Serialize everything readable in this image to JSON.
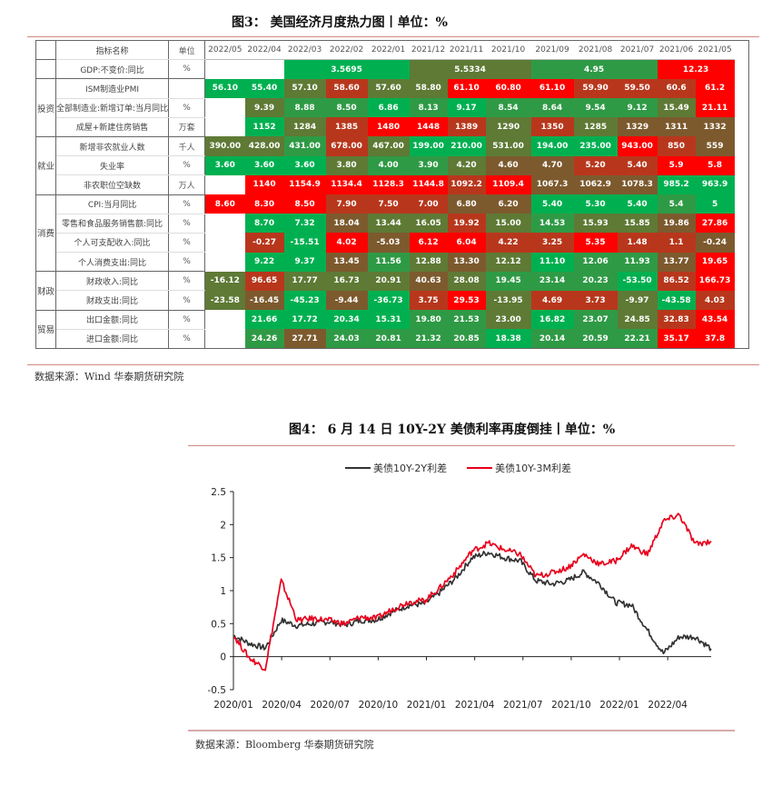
{
  "figure3": {
    "title": "图3：   美国经济月度热力图丨单位：%",
    "header": {
      "name": "指标名称",
      "unit": "单位",
      "months": [
        "2022/05",
        "2022/04",
        "2022/03",
        "2022/02",
        "2022/01",
        "2021/12",
        "2021/11",
        "2021/10",
        "2021/09",
        "2021/08",
        "2021/07",
        "2021/06",
        "2021/05"
      ]
    },
    "gdp": {
      "name": "GDP:不变价:同比",
      "unit": "%",
      "q2022q1": "3.5695",
      "q2021q4": "5.5334",
      "q2021q3": "4.95",
      "q2021q2": "12.23"
    },
    "groups": [
      {
        "label": "投资",
        "rows": [
          {
            "name": "ISM制造业PMI",
            "unit": "",
            "values": [
              "56.10",
              "55.40",
              "57.10",
              "58.60",
              "57.60",
              "58.80",
              "61.10",
              "60.80",
              "61.10",
              "59.90",
              "59.50",
              "60.6",
              "61.2"
            ]
          },
          {
            "name": "全部制造业:新增订单:当月同比",
            "unit": "%",
            "values": [
              "",
              "9.39",
              "8.88",
              "8.50",
              "6.86",
              "8.13",
              "9.17",
              "8.54",
              "8.64",
              "9.54",
              "9.12",
              "15.49",
              "21.11"
            ]
          },
          {
            "name": "成屋+新建住房销售",
            "unit": "万套",
            "values": [
              "",
              "1152",
              "1284",
              "1385",
              "1480",
              "1448",
              "1389",
              "1290",
              "1350",
              "1285",
              "1329",
              "1311",
              "1332"
            ]
          }
        ]
      },
      {
        "label": "就业",
        "rows": [
          {
            "name": "新增非农就业人数",
            "unit": "千人",
            "values": [
              "390.00",
              "428.00",
              "431.00",
              "678.00",
              "467.00",
              "199.00",
              "210.00",
              "531.00",
              "194.00",
              "235.00",
              "943.00",
              "850",
              "559"
            ]
          },
          {
            "name": "失业率",
            "unit": "%",
            "values": [
              "3.60",
              "3.60",
              "3.60",
              "3.80",
              "4.00",
              "3.90",
              "4.20",
              "4.60",
              "4.70",
              "5.20",
              "5.40",
              "5.9",
              "5.8"
            ]
          },
          {
            "name": "非农职位空缺数",
            "unit": "万人",
            "values": [
              "",
              "1140",
              "1154.9",
              "1134.4",
              "1128.3",
              "1144.8",
              "1092.2",
              "1109.4",
              "1067.3",
              "1062.9",
              "1078.3",
              "985.2",
              "963.9"
            ]
          }
        ]
      },
      {
        "label": "消费",
        "rows": [
          {
            "name": "CPI:当月同比",
            "unit": "%",
            "values": [
              "8.60",
              "8.30",
              "8.50",
              "7.90",
              "7.50",
              "7.00",
              "6.80",
              "6.20",
              "5.40",
              "5.30",
              "5.40",
              "5.4",
              "5"
            ]
          },
          {
            "name": "零售和食品服务销售额:同比",
            "unit": "%",
            "values": [
              "",
              "8.70",
              "7.32",
              "18.04",
              "13.44",
              "16.05",
              "19.92",
              "15.00",
              "14.53",
              "15.93",
              "15.85",
              "19.86",
              "27.86"
            ]
          },
          {
            "name": "个人可支配收入:同比",
            "unit": "%",
            "values": [
              "",
              "-0.27",
              "-15.51",
              "4.02",
              "-5.03",
              "6.12",
              "6.04",
              "4.22",
              "3.25",
              "5.35",
              "1.48",
              "1.1",
              "-0.24"
            ]
          },
          {
            "name": "个人消费支出:同比",
            "unit": "%",
            "values": [
              "",
              "9.22",
              "9.37",
              "13.45",
              "11.56",
              "12.88",
              "13.30",
              "12.12",
              "11.10",
              "12.06",
              "11.93",
              "13.77",
              "19.65"
            ]
          }
        ]
      },
      {
        "label": "财政",
        "rows": [
          {
            "name": "财政收入:同比",
            "unit": "%",
            "values": [
              "-16.12",
              "96.65",
              "17.77",
              "16.73",
              "20.91",
              "40.63",
              "28.08",
              "19.45",
              "23.14",
              "20.23",
              "-53.50",
              "86.52",
              "166.73"
            ]
          },
          {
            "name": "财政支出:同比",
            "unit": "%",
            "values": [
              "-23.58",
              "-16.45",
              "-45.23",
              "-9.44",
              "-36.73",
              "3.75",
              "29.53",
              "-13.95",
              "4.69",
              "3.73",
              "-9.97",
              "-43.58",
              "4.03"
            ]
          }
        ]
      },
      {
        "label": "贸易",
        "rows": [
          {
            "name": "出口金额:同比",
            "unit": "%",
            "values": [
              "",
              "21.66",
              "17.72",
              "20.34",
              "15.31",
              "19.80",
              "21.53",
              "23.00",
              "16.82",
              "23.07",
              "24.85",
              "32.83",
              "43.54"
            ]
          },
          {
            "name": "进口金额:同比",
            "unit": "%",
            "values": [
              "",
              "24.26",
              "27.71",
              "24.03",
              "20.81",
              "21.32",
              "20.85",
              "18.38",
              "20.14",
              "20.59",
              "22.21",
              "35.17",
              "37.8"
            ]
          }
        ]
      }
    ],
    "source": "数据来源：Wind  华泰期货研究院"
  },
  "colors": {
    "G": "#00b050",
    "g": "#2f9a45",
    "o": "#5e7a35",
    "b": "#7d5a2e",
    "r": "#b8371c",
    "R": "#ff0000",
    "W": "#ffffff",
    "rule": "#d08a80",
    "series_10y2y": "#333333",
    "series_10y3m": "#e8001c"
  },
  "cell_colors": [
    [
      "G",
      "G",
      "o",
      "r",
      "o",
      "o",
      "R",
      "R",
      "R",
      "r",
      "r",
      "r",
      "R"
    ],
    [
      "W",
      "o",
      "g",
      "g",
      "G",
      "g",
      "G",
      "g",
      "g",
      "g",
      "g",
      "o",
      "R"
    ],
    [
      "W",
      "G",
      "o",
      "r",
      "R",
      "R",
      "r",
      "o",
      "r",
      "o",
      "b",
      "b",
      "b"
    ],
    [
      "o",
      "o",
      "g",
      "r",
      "o",
      "G",
      "G",
      "o",
      "G",
      "G",
      "R",
      "r",
      "b"
    ],
    [
      "G",
      "G",
      "G",
      "o",
      "g",
      "g",
      "o",
      "b",
      "b",
      "r",
      "r",
      "R",
      "R"
    ],
    [
      "W",
      "R",
      "R",
      "R",
      "R",
      "R",
      "r",
      "R",
      "b",
      "b",
      "b",
      "G",
      "G"
    ],
    [
      "R",
      "R",
      "R",
      "r",
      "r",
      "r",
      "b",
      "b",
      "G",
      "G",
      "G",
      "g",
      "G"
    ],
    [
      "W",
      "G",
      "G",
      "b",
      "o",
      "o",
      "r",
      "o",
      "g",
      "o",
      "o",
      "b",
      "R"
    ],
    [
      "W",
      "r",
      "G",
      "R",
      "b",
      "R",
      "R",
      "r",
      "r",
      "R",
      "r",
      "r",
      "b"
    ],
    [
      "W",
      "G",
      "G",
      "b",
      "g",
      "o",
      "b",
      "o",
      "G",
      "g",
      "g",
      "b",
      "R"
    ],
    [
      "o",
      "r",
      "o",
      "o",
      "o",
      "b",
      "o",
      "g",
      "g",
      "g",
      "G",
      "r",
      "R"
    ],
    [
      "o",
      "b",
      "G",
      "b",
      "G",
      "r",
      "R",
      "o",
      "r",
      "r",
      "o",
      "G",
      "r"
    ],
    [
      "W",
      "G",
      "G",
      "G",
      "G",
      "g",
      "g",
      "o",
      "G",
      "g",
      "o",
      "r",
      "R"
    ],
    [
      "W",
      "g",
      "b",
      "g",
      "g",
      "g",
      "g",
      "G",
      "g",
      "g",
      "g",
      "R",
      "R"
    ]
  ],
  "figure4": {
    "title": "图4：   6 月 14 日 10Y-2Y 美债利率再度倒挂丨单位：%",
    "legend": [
      "美债10Y-2Y利差",
      "美债10Y-3M利差"
    ],
    "source": "数据来源：Bloomberg  华泰期货研究院"
  },
  "chart_data": {
    "type": "line",
    "title": "6月14日10Y-2Y美债利率再度倒挂 单位：%",
    "xlabel": "",
    "ylabel": "%",
    "ylim": [
      -0.5,
      2.5
    ],
    "yticks": [
      "2.5",
      "2",
      "1.5",
      "1",
      "0.5",
      "0",
      "-0.5"
    ],
    "xticks": [
      "2020/01",
      "2020/04",
      "2020/07",
      "2020/10",
      "2021/01",
      "2021/04",
      "2021/07",
      "2021/10",
      "2022/01",
      "2022/04"
    ],
    "legend_position": "top",
    "grid": false,
    "x": [
      "2020/01",
      "2020/02",
      "2020/03a",
      "2020/03b",
      "2020/04",
      "2020/05",
      "2020/06",
      "2020/07",
      "2020/08",
      "2020/09",
      "2020/10",
      "2020/11",
      "2020/12",
      "2021/01",
      "2021/02",
      "2021/03",
      "2021/04",
      "2021/05",
      "2021/06",
      "2021/07",
      "2021/08",
      "2021/09",
      "2021/10",
      "2021/11",
      "2021/12",
      "2022/01",
      "2022/02",
      "2022/03",
      "2022/04",
      "2022/05",
      "2022/06/14"
    ],
    "series": [
      {
        "name": "美债10Y-2Y利差",
        "color": "#333333",
        "values": [
          0.32,
          0.2,
          0.13,
          0.55,
          0.47,
          0.5,
          0.53,
          0.48,
          0.55,
          0.56,
          0.68,
          0.78,
          0.8,
          0.98,
          1.2,
          1.5,
          1.58,
          1.5,
          1.45,
          1.15,
          1.1,
          1.15,
          1.28,
          1.1,
          0.82,
          0.78,
          0.4,
          0.05,
          0.3,
          0.3,
          0.12
        ]
      },
      {
        "name": "美债10Y-3M利差",
        "color": "#e8001c",
        "values": [
          0.32,
          -0.02,
          -0.18,
          1.15,
          0.55,
          0.58,
          0.55,
          0.5,
          0.6,
          0.58,
          0.72,
          0.83,
          0.85,
          1.05,
          1.3,
          1.6,
          1.72,
          1.62,
          1.55,
          1.22,
          1.27,
          1.35,
          1.55,
          1.4,
          1.45,
          1.68,
          1.55,
          2.05,
          2.15,
          1.7,
          1.75
        ]
      }
    ]
  }
}
